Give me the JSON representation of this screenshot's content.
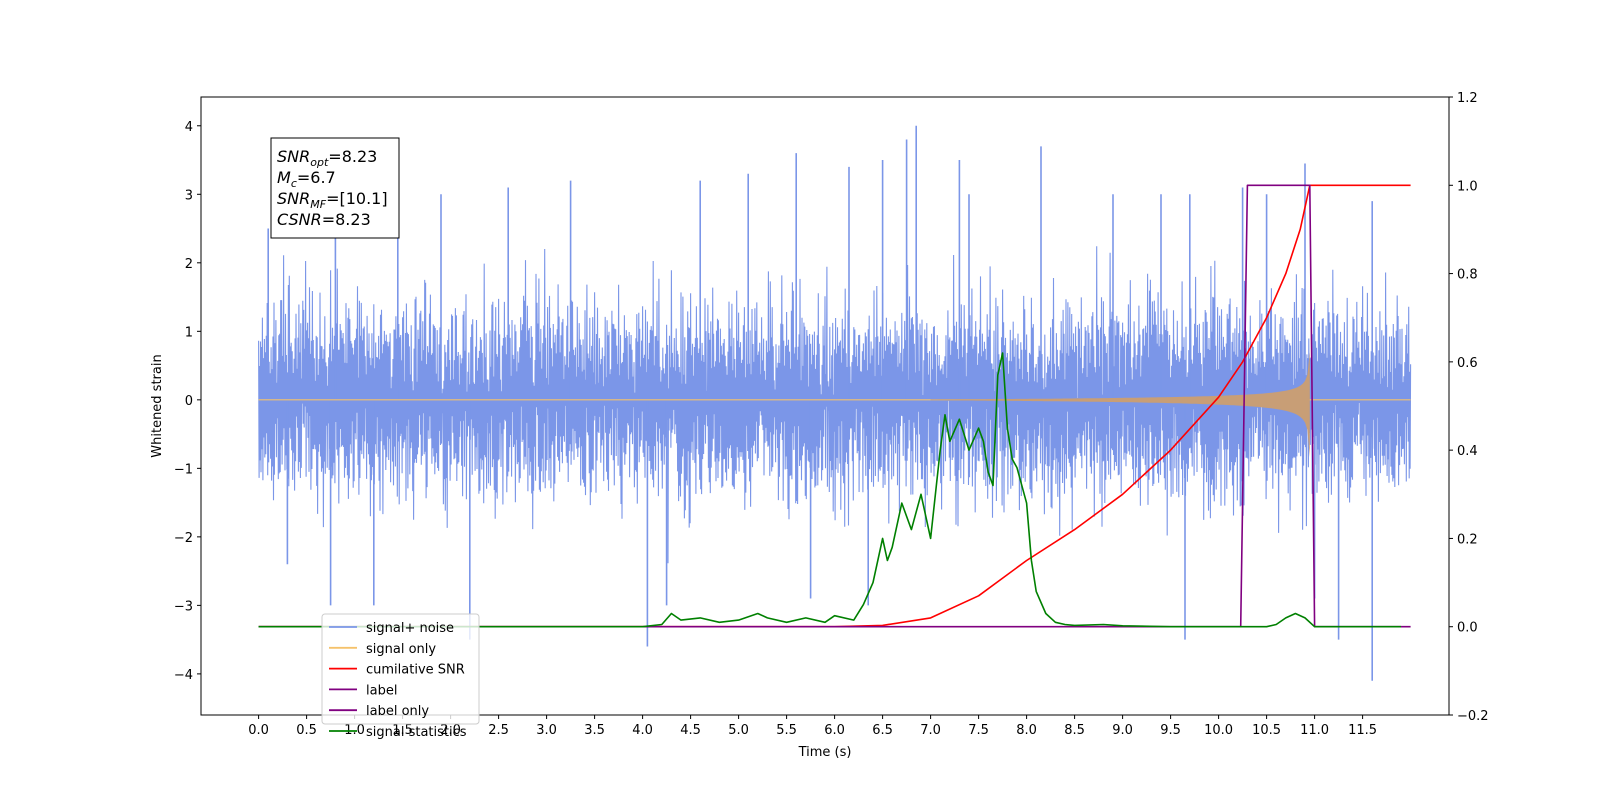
{
  "chart_data": {
    "type": "line",
    "title": "",
    "xlabel": "Time (s)",
    "ylabel": "Whitened strain",
    "y2label": "",
    "xlim": [
      -0.6,
      12.4
    ],
    "ylim": [
      -4.6,
      4.42
    ],
    "y2lim": [
      -0.2,
      1.2
    ],
    "xticks": [
      0.0,
      0.5,
      1.0,
      1.5,
      2.0,
      2.5,
      3.0,
      3.5,
      4.0,
      4.5,
      5.0,
      5.5,
      6.0,
      6.5,
      7.0,
      7.5,
      8.0,
      8.5,
      9.0,
      9.5,
      10.0,
      10.5,
      11.0,
      11.5
    ],
    "xtick_labels": [
      "0.0",
      "0.5",
      "1.0",
      "1.5",
      "2.0",
      "2.5",
      "3.0",
      "3.5",
      "4.0",
      "4.5",
      "5.0",
      "5.5",
      "6.0",
      "6.5",
      "7.0",
      "7.5",
      "8.0",
      "8.5",
      "9.0",
      "9.5",
      "10.0",
      "10.5",
      "11.0",
      "11.5"
    ],
    "yticks": [
      -4,
      -3,
      -2,
      -1,
      0,
      1,
      2,
      3,
      4
    ],
    "ytick_labels": [
      "−4",
      "−3",
      "−2",
      "−1",
      "0",
      "1",
      "2",
      "3",
      "4"
    ],
    "y2ticks": [
      -0.2,
      0.0,
      0.2,
      0.4,
      0.6,
      0.8,
      1.0,
      1.2
    ],
    "y2tick_labels": [
      "−0.2",
      "0.0",
      "0.2",
      "0.4",
      "0.6",
      "0.8",
      "1.0",
      "1.2"
    ],
    "grid": false,
    "legend_position": "lower-left",
    "annotation": {
      "lines": [
        {
          "sym": "SNR",
          "sub": "opt",
          "val": "=8.23"
        },
        {
          "sym": "M",
          "sub": "c",
          "val": "=6.7"
        },
        {
          "sym": "SNR",
          "sub": "MF",
          "val": "=[10.1]"
        },
        {
          "sym": "CSNR",
          "sub": "",
          "val": "=8.23"
        }
      ]
    },
    "noise": {
      "name": "signal+ noise",
      "color": "#7b96e8",
      "x_start": 0.0,
      "x_end": 12.0,
      "typical_envelope": 1.7,
      "spikes": [
        {
          "x": 0.1,
          "y": 2.5
        },
        {
          "x": 0.3,
          "y": -2.4
        },
        {
          "x": 0.8,
          "y": 2.7
        },
        {
          "x": 0.75,
          "y": -3.0
        },
        {
          "x": 1.2,
          "y": -3.0
        },
        {
          "x": 1.45,
          "y": 3.2
        },
        {
          "x": 1.9,
          "y": 3.0
        },
        {
          "x": 2.2,
          "y": -3.5
        },
        {
          "x": 2.6,
          "y": 3.1
        },
        {
          "x": 3.25,
          "y": 3.2
        },
        {
          "x": 4.05,
          "y": -3.6
        },
        {
          "x": 4.25,
          "y": -3.0
        },
        {
          "x": 4.6,
          "y": 3.2
        },
        {
          "x": 5.1,
          "y": 3.3
        },
        {
          "x": 5.6,
          "y": 3.6
        },
        {
          "x": 5.75,
          "y": -2.9
        },
        {
          "x": 6.15,
          "y": 3.4
        },
        {
          "x": 6.35,
          "y": -3.0
        },
        {
          "x": 6.5,
          "y": 3.5
        },
        {
          "x": 6.75,
          "y": 3.8
        },
        {
          "x": 6.85,
          "y": 4.0
        },
        {
          "x": 7.3,
          "y": 3.5
        },
        {
          "x": 7.4,
          "y": 3.0
        },
        {
          "x": 8.15,
          "y": 3.7
        },
        {
          "x": 8.9,
          "y": 3.0
        },
        {
          "x": 9.4,
          "y": 3.0
        },
        {
          "x": 9.65,
          "y": -3.5
        },
        {
          "x": 9.7,
          "y": 3.0
        },
        {
          "x": 10.25,
          "y": 3.1
        },
        {
          "x": 10.5,
          "y": 3.0
        },
        {
          "x": 10.9,
          "y": 3.45
        },
        {
          "x": 11.0,
          "y": -2.9
        },
        {
          "x": 11.25,
          "y": -3.5
        },
        {
          "x": 11.6,
          "y": -4.1
        },
        {
          "x": 11.6,
          "y": 2.9
        }
      ]
    },
    "series": [
      {
        "name": "signal only",
        "color": "#f5c26b",
        "axis": "left",
        "chirp": {
          "t_start": 7.0,
          "t_merge": 10.95,
          "end_amplitude": 0.8,
          "fill_color": "#c89e76"
        }
      },
      {
        "name": "cumilative SNR",
        "color": "#ff0000",
        "axis": "right",
        "x": [
          0.0,
          6.0,
          6.5,
          7.0,
          7.5,
          8.0,
          8.5,
          9.0,
          9.5,
          10.0,
          10.25,
          10.5,
          10.7,
          10.85,
          10.95,
          11.0,
          12.0
        ],
        "y": [
          0.0,
          0.0,
          0.003,
          0.02,
          0.07,
          0.15,
          0.22,
          0.3,
          0.4,
          0.52,
          0.6,
          0.7,
          0.8,
          0.9,
          1.0,
          1.0,
          1.0
        ]
      },
      {
        "name": "label",
        "color": "#800080",
        "axis": "right",
        "x": [
          0.0,
          10.23,
          10.3,
          10.95,
          11.0,
          12.0
        ],
        "y": [
          0.0,
          0.0,
          1.0,
          1.0,
          0.0,
          0.0
        ]
      },
      {
        "name": "label only",
        "color": "#800080",
        "axis": "right",
        "x": [],
        "y": []
      },
      {
        "name": "signal statistics",
        "color": "#008000",
        "axis": "right",
        "x": [
          0.0,
          4.0,
          4.2,
          4.3,
          4.4,
          4.6,
          4.8,
          5.0,
          5.2,
          5.3,
          5.5,
          5.7,
          5.9,
          6.0,
          6.2,
          6.3,
          6.4,
          6.5,
          6.55,
          6.6,
          6.7,
          6.8,
          6.9,
          7.0,
          7.1,
          7.15,
          7.2,
          7.3,
          7.4,
          7.5,
          7.55,
          7.6,
          7.65,
          7.7,
          7.75,
          7.8,
          7.85,
          7.9,
          8.0,
          8.05,
          8.1,
          8.2,
          8.3,
          8.4,
          8.5,
          8.8,
          9.0,
          9.5,
          10.0,
          10.5,
          10.6,
          10.7,
          10.8,
          10.9,
          11.0,
          11.9
        ],
        "y": [
          0.0,
          0.0,
          0.005,
          0.03,
          0.015,
          0.02,
          0.01,
          0.015,
          0.03,
          0.02,
          0.01,
          0.02,
          0.01,
          0.025,
          0.015,
          0.05,
          0.1,
          0.2,
          0.15,
          0.18,
          0.28,
          0.22,
          0.3,
          0.2,
          0.4,
          0.48,
          0.42,
          0.47,
          0.4,
          0.45,
          0.42,
          0.35,
          0.32,
          0.57,
          0.62,
          0.45,
          0.38,
          0.36,
          0.28,
          0.15,
          0.08,
          0.03,
          0.01,
          0.005,
          0.003,
          0.005,
          0.002,
          0.0,
          0.0,
          0.0,
          0.005,
          0.02,
          0.03,
          0.02,
          0.0,
          0.0
        ]
      }
    ],
    "legend": [
      "signal+ noise",
      "signal only",
      "cumilative SNR",
      "label",
      "label only",
      "signal statistics"
    ]
  }
}
